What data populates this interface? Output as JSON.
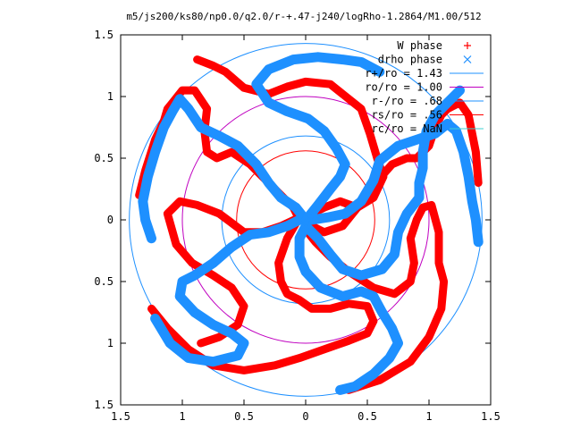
{
  "chart_data": {
    "type": "scatter",
    "title": "m5/js200/ks80/np0.0/q2.0/r-+.47-j240/logRho-1.2864/M1.00/512",
    "xlim": [
      -1.5,
      1.5
    ],
    "ylim": [
      -1.5,
      1.5
    ],
    "x_ticks": [
      "1.5",
      "1",
      "0.5",
      "0",
      "0.5",
      "1",
      "1.5"
    ],
    "x_tick_values": [
      -1.5,
      -1,
      -0.5,
      0,
      0.5,
      1,
      1.5
    ],
    "y_ticks": [
      "1.5",
      "1",
      "0.5",
      "0",
      "0.5",
      "1",
      "1.5"
    ],
    "y_tick_values": [
      1.5,
      1,
      0.5,
      0,
      -0.5,
      -1,
      -1.5
    ],
    "grid": false,
    "legend_position": "top-right",
    "legend": [
      {
        "label": "W phase",
        "kind": "marker",
        "symbol": "plus",
        "color": "#ff0000"
      },
      {
        "label": "drho phase",
        "kind": "marker",
        "symbol": "cross",
        "color": "#1e90ff"
      },
      {
        "label": "r+/ro = 1.43",
        "kind": "line",
        "color": "#1e90ff"
      },
      {
        "label": "ro/ro = 1.00",
        "kind": "line",
        "color": "#c000c0"
      },
      {
        "label": "r-/ro = .68",
        "kind": "line",
        "color": "#1e90ff"
      },
      {
        "label": "rs/ro = .56",
        "kind": "line",
        "color": "#ff0000"
      },
      {
        "label": "rc/ro = NaN",
        "kind": "line",
        "color": "#40d0d0"
      }
    ],
    "circles": [
      {
        "r": 1.43,
        "color": "#1e90ff"
      },
      {
        "r": 1.0,
        "color": "#c000c0"
      },
      {
        "r": 0.68,
        "color": "#1e90ff"
      },
      {
        "r": 0.56,
        "color": "#ff0000"
      }
    ],
    "series": [
      {
        "name": "W phase",
        "color": "#ff0000",
        "arms": [
          [
            [
              -0.05,
              0.0
            ],
            [
              -0.1,
              0.1
            ],
            [
              -0.2,
              0.2
            ],
            [
              -0.3,
              0.3
            ],
            [
              -0.45,
              0.45
            ],
            [
              -0.6,
              0.55
            ],
            [
              -0.72,
              0.5
            ],
            [
              -0.8,
              0.55
            ],
            [
              -0.82,
              0.72
            ],
            [
              -0.8,
              0.9
            ],
            [
              -0.9,
              1.05
            ],
            [
              -1.0,
              1.05
            ],
            [
              -1.08,
              0.95
            ],
            [
              -1.12,
              0.9
            ],
            [
              -1.15,
              0.8
            ],
            [
              -1.22,
              0.65
            ],
            [
              -1.3,
              0.4
            ],
            [
              -1.35,
              0.2
            ]
          ],
          [
            [
              0.05,
              0.05
            ],
            [
              0.15,
              0.1
            ],
            [
              0.28,
              0.15
            ],
            [
              0.42,
              0.1
            ],
            [
              0.55,
              0.18
            ],
            [
              0.63,
              0.35
            ],
            [
              0.58,
              0.5
            ],
            [
              0.52,
              0.7
            ],
            [
              0.45,
              0.9
            ],
            [
              0.3,
              1.02
            ],
            [
              0.2,
              1.1
            ],
            [
              0.0,
              1.12
            ],
            [
              -0.15,
              1.08
            ],
            [
              -0.3,
              1.02
            ],
            [
              -0.5,
              1.07
            ],
            [
              -0.65,
              1.2
            ],
            [
              -0.75,
              1.25
            ],
            [
              -0.88,
              1.3
            ]
          ],
          [
            [
              0.05,
              -0.05
            ],
            [
              0.15,
              -0.1
            ],
            [
              0.3,
              -0.05
            ],
            [
              0.42,
              0.1
            ],
            [
              0.55,
              0.28
            ],
            [
              0.7,
              0.45
            ],
            [
              0.82,
              0.5
            ],
            [
              0.9,
              0.5
            ],
            [
              1.0,
              0.6
            ],
            [
              1.05,
              0.75
            ],
            [
              1.1,
              0.85
            ],
            [
              1.15,
              0.9
            ],
            [
              1.25,
              0.95
            ],
            [
              1.32,
              0.85
            ],
            [
              1.38,
              0.55
            ],
            [
              1.4,
              0.3
            ]
          ],
          [
            [
              0.0,
              -0.08
            ],
            [
              0.08,
              -0.18
            ],
            [
              0.2,
              -0.3
            ],
            [
              0.35,
              -0.42
            ],
            [
              0.55,
              -0.55
            ],
            [
              0.72,
              -0.6
            ],
            [
              0.85,
              -0.5
            ],
            [
              0.88,
              -0.35
            ],
            [
              0.85,
              -0.15
            ],
            [
              0.9,
              0.0
            ],
            [
              0.95,
              0.1
            ],
            [
              1.02,
              0.12
            ],
            [
              1.08,
              -0.1
            ],
            [
              1.08,
              -0.35
            ],
            [
              1.12,
              -0.5
            ],
            [
              1.1,
              -0.72
            ],
            [
              1.0,
              -0.95
            ],
            [
              0.85,
              -1.15
            ],
            [
              0.6,
              -1.3
            ],
            [
              0.35,
              -1.38
            ]
          ],
          [
            [
              -0.08,
              -0.03
            ],
            [
              -0.15,
              -0.15
            ],
            [
              -0.22,
              -0.35
            ],
            [
              -0.2,
              -0.5
            ],
            [
              -0.15,
              -0.6
            ],
            [
              -0.05,
              -0.65
            ],
            [
              0.05,
              -0.72
            ],
            [
              0.2,
              -0.72
            ],
            [
              0.35,
              -0.68
            ],
            [
              0.5,
              -0.7
            ],
            [
              0.55,
              -0.82
            ],
            [
              0.5,
              -0.92
            ],
            [
              0.35,
              -0.98
            ],
            [
              0.15,
              -1.05
            ],
            [
              -0.05,
              -1.12
            ],
            [
              -0.25,
              -1.18
            ],
            [
              -0.5,
              -1.22
            ],
            [
              -0.75,
              -1.18
            ],
            [
              -0.95,
              -1.05
            ],
            [
              -1.12,
              -0.88
            ],
            [
              -1.25,
              -0.72
            ]
          ],
          [
            [
              -0.05,
              0.02
            ],
            [
              -0.2,
              -0.05
            ],
            [
              -0.35,
              -0.1
            ],
            [
              -0.5,
              -0.1
            ],
            [
              -0.7,
              0.05
            ],
            [
              -0.88,
              0.12
            ],
            [
              -1.02,
              0.15
            ],
            [
              -1.12,
              0.05
            ],
            [
              -1.05,
              -0.2
            ],
            [
              -0.92,
              -0.35
            ],
            [
              -0.75,
              -0.45
            ],
            [
              -0.6,
              -0.55
            ],
            [
              -0.5,
              -0.7
            ],
            [
              -0.55,
              -0.85
            ],
            [
              -0.7,
              -0.95
            ],
            [
              -0.85,
              -1.0
            ]
          ]
        ]
      },
      {
        "name": "drho phase",
        "color": "#1e90ff",
        "arms": [
          [
            [
              0.0,
              0.0
            ],
            [
              -0.08,
              0.1
            ],
            [
              -0.2,
              0.18
            ],
            [
              -0.3,
              0.3
            ],
            [
              -0.4,
              0.45
            ],
            [
              -0.55,
              0.6
            ],
            [
              -0.7,
              0.68
            ],
            [
              -0.85,
              0.75
            ],
            [
              -0.95,
              0.9
            ],
            [
              -1.02,
              0.98
            ],
            [
              -1.08,
              0.88
            ],
            [
              -1.15,
              0.75
            ],
            [
              -1.22,
              0.55
            ],
            [
              -1.28,
              0.35
            ],
            [
              -1.32,
              0.15
            ],
            [
              -1.3,
              0.0
            ],
            [
              -1.25,
              -0.15
            ]
          ],
          [
            [
              0.02,
              0.02
            ],
            [
              0.1,
              0.12
            ],
            [
              0.2,
              0.25
            ],
            [
              0.28,
              0.35
            ],
            [
              0.32,
              0.45
            ],
            [
              0.25,
              0.58
            ],
            [
              0.15,
              0.72
            ],
            [
              0.02,
              0.82
            ],
            [
              -0.15,
              0.88
            ],
            [
              -0.3,
              0.95
            ],
            [
              -0.4,
              1.1
            ],
            [
              -0.3,
              1.22
            ],
            [
              -0.1,
              1.3
            ],
            [
              0.1,
              1.32
            ],
            [
              0.3,
              1.3
            ],
            [
              0.45,
              1.28
            ],
            [
              0.6,
              1.2
            ]
          ],
          [
            [
              0.05,
              0.0
            ],
            [
              0.18,
              0.02
            ],
            [
              0.32,
              0.05
            ],
            [
              0.45,
              0.15
            ],
            [
              0.55,
              0.32
            ],
            [
              0.6,
              0.48
            ],
            [
              0.75,
              0.6
            ],
            [
              0.9,
              0.65
            ],
            [
              1.05,
              0.7
            ],
            [
              1.15,
              0.78
            ],
            [
              1.22,
              0.72
            ],
            [
              1.28,
              0.55
            ],
            [
              1.32,
              0.35
            ],
            [
              1.35,
              0.15
            ],
            [
              1.38,
              0.0
            ],
            [
              1.4,
              -0.18
            ]
          ],
          [
            [
              0.0,
              -0.05
            ],
            [
              0.1,
              -0.15
            ],
            [
              0.2,
              -0.28
            ],
            [
              0.3,
              -0.4
            ],
            [
              0.45,
              -0.45
            ],
            [
              0.62,
              -0.4
            ],
            [
              0.72,
              -0.28
            ],
            [
              0.75,
              -0.1
            ],
            [
              0.82,
              0.05
            ],
            [
              0.92,
              0.18
            ],
            [
              0.92,
              0.3
            ],
            [
              0.95,
              0.42
            ],
            [
              0.95,
              0.55
            ],
            [
              0.98,
              0.72
            ],
            [
              1.05,
              0.85
            ],
            [
              1.15,
              0.95
            ],
            [
              1.25,
              1.05
            ]
          ],
          [
            [
              0.0,
              -0.05
            ],
            [
              -0.05,
              -0.15
            ],
            [
              -0.05,
              -0.3
            ],
            [
              0.0,
              -0.42
            ],
            [
              0.12,
              -0.55
            ],
            [
              0.3,
              -0.62
            ],
            [
              0.45,
              -0.58
            ],
            [
              0.55,
              -0.62
            ],
            [
              0.62,
              -0.75
            ],
            [
              0.7,
              -0.88
            ],
            [
              0.75,
              -1.0
            ],
            [
              0.68,
              -1.12
            ],
            [
              0.55,
              -1.25
            ],
            [
              0.4,
              -1.35
            ],
            [
              0.28,
              -1.38
            ]
          ],
          [
            [
              -0.05,
              0.0
            ],
            [
              -0.15,
              -0.05
            ],
            [
              -0.3,
              -0.1
            ],
            [
              -0.45,
              -0.12
            ],
            [
              -0.6,
              -0.22
            ],
            [
              -0.75,
              -0.35
            ],
            [
              -0.9,
              -0.45
            ],
            [
              -1.0,
              -0.5
            ],
            [
              -1.02,
              -0.62
            ],
            [
              -0.9,
              -0.75
            ],
            [
              -0.75,
              -0.85
            ],
            [
              -0.6,
              -0.92
            ],
            [
              -0.5,
              -1.0
            ],
            [
              -0.55,
              -1.1
            ],
            [
              -0.75,
              -1.15
            ],
            [
              -0.95,
              -1.12
            ],
            [
              -1.1,
              -1.0
            ],
            [
              -1.22,
              -0.8
            ]
          ]
        ]
      }
    ]
  }
}
